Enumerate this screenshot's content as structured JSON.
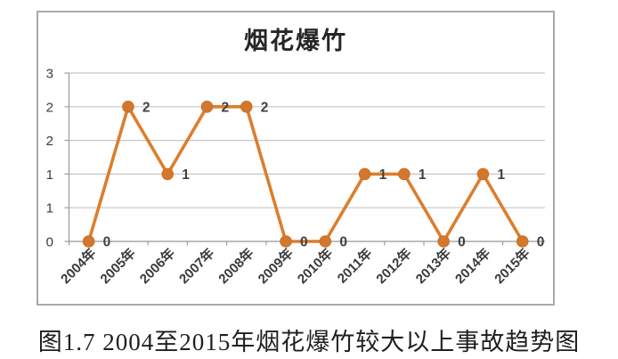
{
  "figure": {
    "caption": "图1.7 2004至2015年烟花爆竹较大以上事故趋势图"
  },
  "chart_data": {
    "type": "line",
    "title": "烟花爆竹",
    "categories": [
      "2004年",
      "2005年",
      "2006年",
      "2007年",
      "2008年",
      "2009年",
      "2010年",
      "2011年",
      "2012年",
      "2013年",
      "2014年",
      "2015年"
    ],
    "values": [
      0,
      2,
      1,
      2,
      2,
      0,
      0,
      1,
      1,
      0,
      1,
      0
    ],
    "data_labels": [
      "0",
      "2",
      "1",
      "2",
      "2",
      "0",
      "0",
      "1",
      "1",
      "0",
      "1",
      "0"
    ],
    "xlabel": "",
    "ylabel": "",
    "ylim": [
      0,
      2.5
    ],
    "y_ticks": [
      {
        "value": 2.5,
        "label": "3"
      },
      {
        "value": 2.0,
        "label": "2"
      },
      {
        "value": 1.5,
        "label": "2"
      },
      {
        "value": 1.0,
        "label": "1"
      },
      {
        "value": 0.5,
        "label": "1"
      },
      {
        "value": 0.0,
        "label": "0"
      }
    ],
    "grid": true,
    "legend": "none",
    "x_label_rotation": -45,
    "marker": "circle",
    "colors": {
      "line": "#dc7e2e",
      "marker_fill": "#d3772c",
      "marker_stroke": "#c96f28",
      "grid": "#c6c6c6",
      "axis": "#9e9e9e",
      "tick_label": "#3a3a3a",
      "data_label": "#404040",
      "title": "#262626",
      "chart_border": "#a9a9a9",
      "background": "#ffffff"
    }
  }
}
